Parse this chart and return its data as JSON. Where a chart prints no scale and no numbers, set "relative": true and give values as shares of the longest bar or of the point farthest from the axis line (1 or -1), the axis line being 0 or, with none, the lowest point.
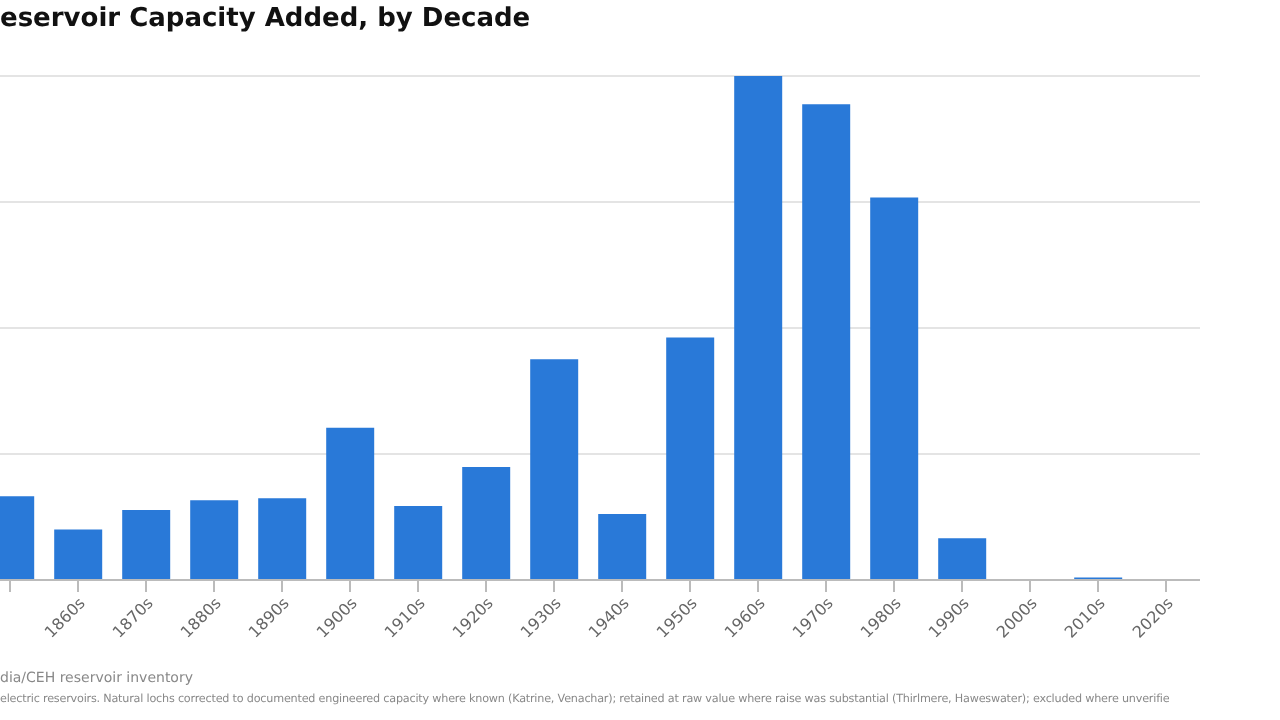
{
  "chart_data": {
    "type": "bar",
    "title": "eservoir Capacity Added, by Decade",
    "categories": [
      null,
      "1860s",
      "1870s",
      "1880s",
      "1890s",
      "1900s",
      "1910s",
      "1920s",
      "1930s",
      "1940s",
      "1950s",
      "1960s",
      "1970s",
      "1980s",
      "1990s",
      "2000s",
      "2010s",
      "2020s"
    ],
    "values": [
      0.166,
      0.1,
      0.139,
      0.158,
      0.162,
      0.302,
      0.147,
      0.224,
      0.438,
      0.131,
      0.481,
      1,
      0.944,
      0.759,
      0.083,
      0,
      0.005,
      0
    ],
    "color": "#2979d8",
    "relative": true,
    "grid": "y",
    "annotations": [
      "dia/CEH reservoir inventory",
      "electric reservoirs. Natural lochs corrected to documented engineered capacity where known (Katrine, Venachar); retained at raw value where raise was substantial (Thirlmere, Haweswater); excluded where unverifie"
    ]
  }
}
